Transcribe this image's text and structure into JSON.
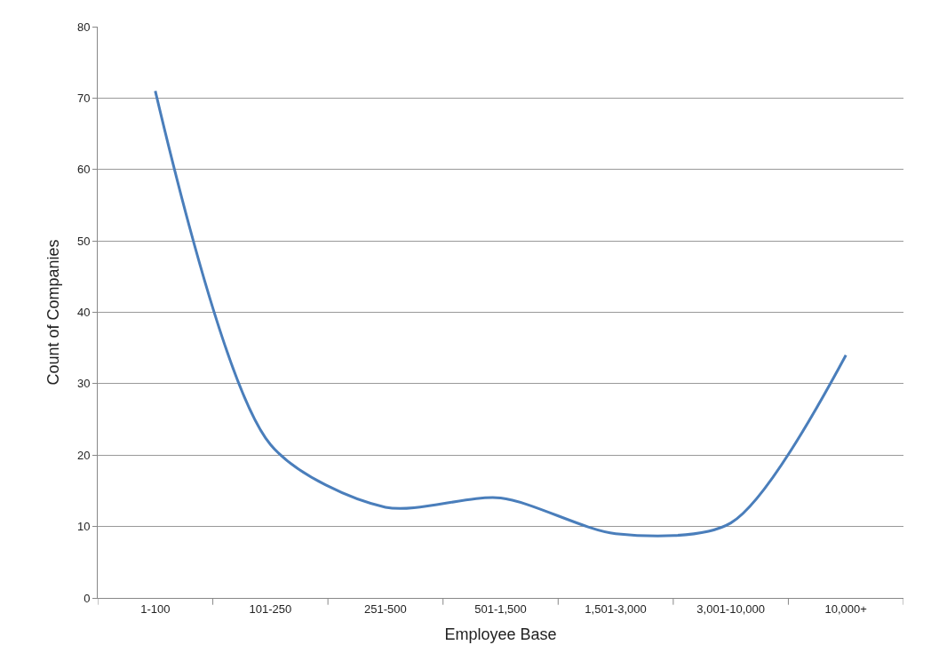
{
  "chart_data": {
    "type": "line",
    "xlabel": "Employee Base",
    "ylabel": "Count of Companies",
    "categories": [
      "1-100",
      "101-250",
      "251-500",
      "501-1,500",
      "1,501-3,000",
      "3,001-10,000",
      "10,000+"
    ],
    "series": [
      {
        "color": "#4a7ebb",
        "values": [
          71,
          21.5,
          12.7,
          14,
          9,
          10.5,
          34
        ]
      }
    ],
    "ylim": [
      0,
      80
    ],
    "yticks": [
      0,
      10,
      20,
      30,
      40,
      50,
      60,
      70,
      80
    ],
    "grid": "y"
  }
}
